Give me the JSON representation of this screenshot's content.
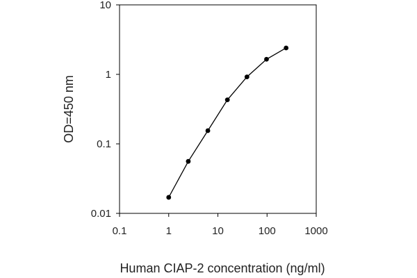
{
  "chart_data": {
    "type": "line",
    "title": "",
    "xlabel": "Human CIAP-2 concentration (ng/ml)",
    "ylabel": "OD=450 nm",
    "x_scale": "log",
    "y_scale": "log",
    "xlim": [
      0.1,
      1000
    ],
    "ylim": [
      0.01,
      10
    ],
    "x_ticks": [
      "0.1",
      "1",
      "10",
      "100",
      "1000"
    ],
    "y_ticks": [
      "0.01",
      "0.1",
      "1",
      "10"
    ],
    "grid": false,
    "legend": "none",
    "series": [
      {
        "x": [
          1,
          2.5,
          6.25,
          15.6,
          39,
          97.5,
          244
        ],
        "y": [
          0.017,
          0.056,
          0.155,
          0.43,
          0.92,
          1.65,
          2.4
        ]
      }
    ],
    "colors": {
      "line": "#000000",
      "marker": "#000000",
      "frame": "#000000"
    }
  }
}
